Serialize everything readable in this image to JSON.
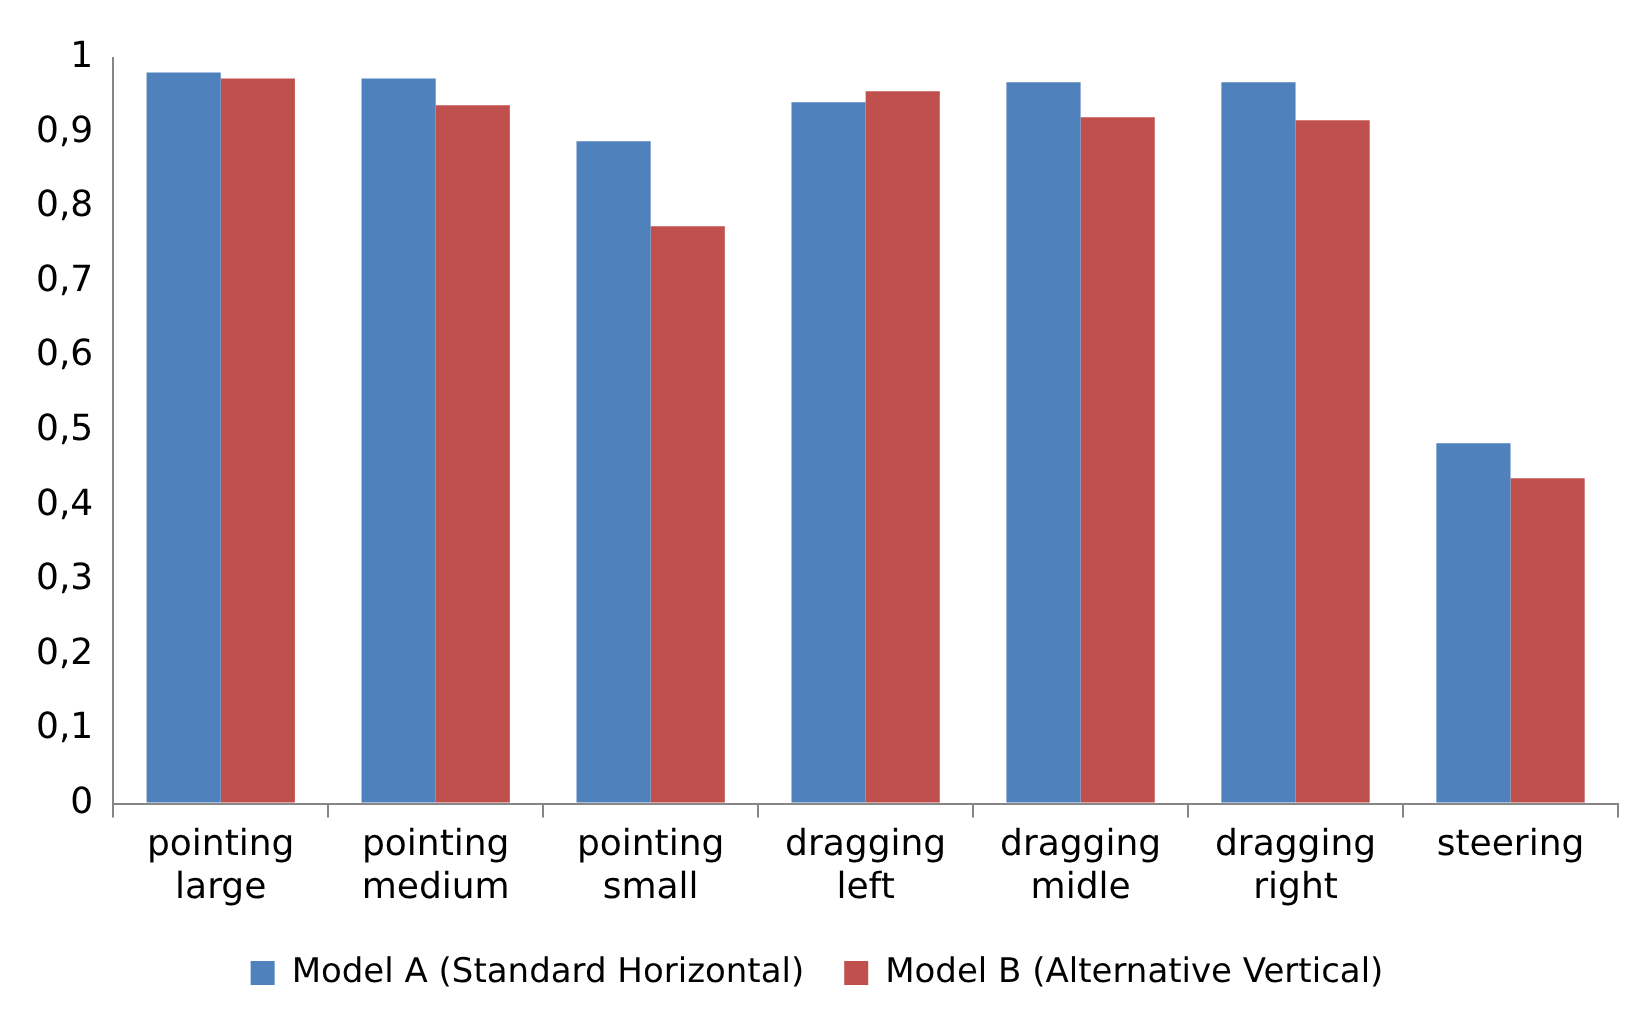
{
  "chart_data": {
    "type": "bar",
    "categories": [
      "pointing large",
      "pointing medium",
      "pointing small",
      "dragging left",
      "dragging midle",
      "dragging right",
      "steering"
    ],
    "series": [
      {
        "name": "Model A (Standard Horizontal)",
        "color": "#4f81bd",
        "values": [
          0.98,
          0.972,
          0.888,
          0.94,
          0.967,
          0.967,
          0.483
        ]
      },
      {
        "name": "Model B (Alternative Vertical)",
        "color": "#c0504d",
        "values": [
          0.972,
          0.936,
          0.774,
          0.955,
          0.92,
          0.916,
          0.436
        ]
      }
    ],
    "ylim": [
      0,
      1
    ],
    "yticks": [
      {
        "value": 0,
        "label": "0"
      },
      {
        "value": 0.1,
        "label": "0,1"
      },
      {
        "value": 0.2,
        "label": "0,2"
      },
      {
        "value": 0.3,
        "label": "0,3"
      },
      {
        "value": 0.4,
        "label": "0,4"
      },
      {
        "value": 0.5,
        "label": "0,5"
      },
      {
        "value": 0.6,
        "label": "0,6"
      },
      {
        "value": 0.7,
        "label": "0,7"
      },
      {
        "value": 0.8,
        "label": "0,8"
      },
      {
        "value": 0.9,
        "label": "0,9"
      },
      {
        "value": 1,
        "label": "1"
      }
    ],
    "grid": false,
    "legend": "bottom"
  }
}
